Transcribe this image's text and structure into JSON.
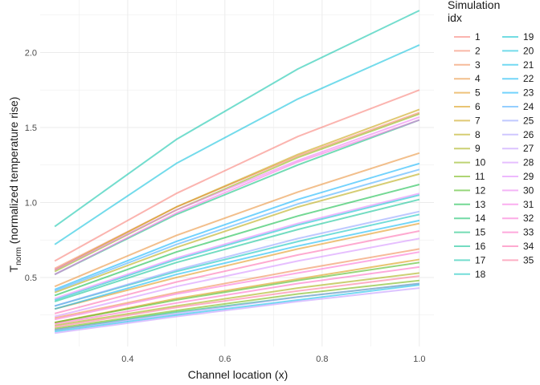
{
  "chart_data": {
    "type": "line",
    "xlabel": "Channel location (x)",
    "ylabel_main": "T",
    "ylabel_sub": "norm",
    "ylabel_rest": " (normalized temperature rise)",
    "legend_title": [
      "Simulation",
      "idx"
    ],
    "legend_position": "right",
    "grid": true,
    "xlim": [
      0.22,
      1.03
    ],
    "ylim": [
      0.04,
      2.35
    ],
    "x_ticks": [
      0.4,
      0.6,
      0.8,
      1.0
    ],
    "x_tick_labels": [
      "0.4",
      "0.6",
      "0.8",
      "1.0"
    ],
    "y_ticks": [
      0.5,
      1.0,
      1.5,
      2.0
    ],
    "y_tick_labels": [
      "0.5",
      "1.0",
      "1.5",
      "2.0"
    ],
    "x": [
      0.25,
      0.5,
      0.75,
      1.0
    ],
    "series": [
      {
        "name": "1",
        "color": "#F8766D",
        "values": [
          0.61,
          1.06,
          1.44,
          1.75
        ]
      },
      {
        "name": "2",
        "color": "#F47D5D",
        "values": [
          0.56,
          0.97,
          1.31,
          1.6
        ]
      },
      {
        "name": "3",
        "color": "#EE8347",
        "values": [
          0.23,
          0.4,
          0.55,
          0.69
        ]
      },
      {
        "name": "4",
        "color": "#E88A2D",
        "values": [
          0.44,
          0.78,
          1.07,
          1.33
        ]
      },
      {
        "name": "5",
        "color": "#E0900E",
        "values": [
          0.29,
          0.5,
          0.69,
          0.86
        ]
      },
      {
        "name": "6",
        "color": "#D79600",
        "values": [
          0.2,
          0.36,
          0.49,
          0.62
        ]
      },
      {
        "name": "7",
        "color": "#C79D00",
        "values": [
          0.55,
          0.97,
          1.32,
          1.62
        ]
      },
      {
        "name": "8",
        "color": "#B4A400",
        "values": [
          0.4,
          0.7,
          0.97,
          1.19
        ]
      },
      {
        "name": "9",
        "color": "#A0A900",
        "values": [
          0.18,
          0.31,
          0.43,
          0.53
        ]
      },
      {
        "name": "10",
        "color": "#89AE00",
        "values": [
          0.54,
          0.95,
          1.3,
          1.59
        ]
      },
      {
        "name": "11",
        "color": "#6CB100",
        "values": [
          0.16,
          0.28,
          0.39,
          0.48
        ]
      },
      {
        "name": "12",
        "color": "#40B40E",
        "values": [
          0.2,
          0.35,
          0.48,
          0.6
        ]
      },
      {
        "name": "13",
        "color": "#00B83C",
        "values": [
          0.38,
          0.67,
          0.91,
          1.12
        ]
      },
      {
        "name": "14",
        "color": "#00BB5C",
        "values": [
          0.15,
          0.27,
          0.37,
          0.46
        ]
      },
      {
        "name": "15",
        "color": "#00BD76",
        "values": [
          0.52,
          0.92,
          1.25,
          1.55
        ]
      },
      {
        "name": "16",
        "color": "#00BF8E",
        "values": [
          0.34,
          0.6,
          0.82,
          1.02
        ]
      },
      {
        "name": "17",
        "color": "#00C1A5",
        "values": [
          0.84,
          1.42,
          1.89,
          2.28
        ]
      },
      {
        "name": "18",
        "color": "#00C1B9",
        "values": [
          0.31,
          0.54,
          0.74,
          0.92
        ]
      },
      {
        "name": "19",
        "color": "#00C0CB",
        "values": [
          0.35,
          0.62,
          0.85,
          1.05
        ]
      },
      {
        "name": "20",
        "color": "#00BEDB",
        "values": [
          0.72,
          1.26,
          1.69,
          2.05
        ]
      },
      {
        "name": "21",
        "color": "#00BAE8",
        "values": [
          0.14,
          0.25,
          0.35,
          0.45
        ]
      },
      {
        "name": "22",
        "color": "#00B5F3",
        "values": [
          0.29,
          0.52,
          0.71,
          0.88
        ]
      },
      {
        "name": "23",
        "color": "#00AFFB",
        "values": [
          0.42,
          0.74,
          1.02,
          1.26
        ]
      },
      {
        "name": "24",
        "color": "#3DA7FF",
        "values": [
          0.41,
          0.72,
          0.99,
          1.22
        ]
      },
      {
        "name": "25",
        "color": "#8B9CFF",
        "values": [
          0.31,
          0.55,
          0.76,
          0.94
        ]
      },
      {
        "name": "26",
        "color": "#A899FF",
        "values": [
          0.15,
          0.26,
          0.37,
          0.46
        ]
      },
      {
        "name": "27",
        "color": "#BE92FF",
        "values": [
          0.13,
          0.24,
          0.34,
          0.43
        ]
      },
      {
        "name": "28",
        "color": "#D18AFF",
        "values": [
          0.24,
          0.44,
          0.61,
          0.76
        ]
      },
      {
        "name": "29",
        "color": "#E080FD",
        "values": [
          0.36,
          0.63,
          0.86,
          1.06
        ]
      },
      {
        "name": "30",
        "color": "#EB79F0",
        "values": [
          0.55,
          0.95,
          1.28,
          1.57
        ]
      },
      {
        "name": "31",
        "color": "#F66CE2",
        "values": [
          0.52,
          0.93,
          1.27,
          1.55
        ]
      },
      {
        "name": "32",
        "color": "#FA67D1",
        "values": [
          0.22,
          0.39,
          0.53,
          0.67
        ]
      },
      {
        "name": "33",
        "color": "#FD62BF",
        "values": [
          0.19,
          0.33,
          0.46,
          0.57
        ]
      },
      {
        "name": "34",
        "color": "#FD65AA",
        "values": [
          0.26,
          0.47,
          0.65,
          0.81
        ]
      },
      {
        "name": "35",
        "color": "#FB6E93",
        "values": [
          0.17,
          0.3,
          0.41,
          0.51
        ]
      }
    ]
  }
}
